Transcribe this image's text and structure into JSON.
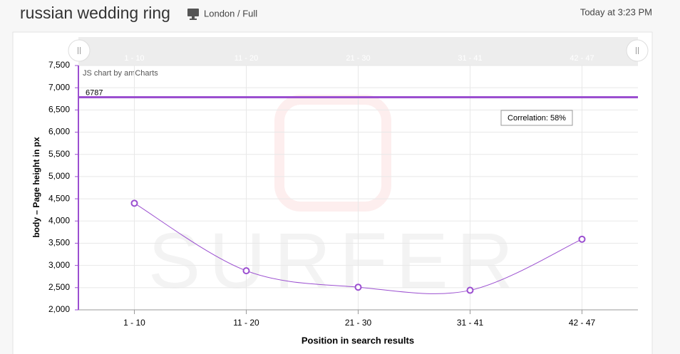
{
  "header": {
    "title": "russian wedding ring",
    "location": "London / Full",
    "timestamp": "Today at 3:23 PM"
  },
  "chart_data": {
    "type": "line",
    "credit": "JS chart by amCharts",
    "watermark": "SURFER",
    "x_label": "Position in search results",
    "y_label": "body – Page height in px",
    "annotation": "Correlation: 58%",
    "reference_line": {
      "value": 6787,
      "color": "#9b4fd0"
    },
    "categories": [
      "1 - 10",
      "11 - 20",
      "21 - 30",
      "31 - 41",
      "42 - 47"
    ],
    "series": [
      {
        "color": "#9b4fd0",
        "values": [
          4400,
          2880,
          2510,
          2440,
          3590
        ]
      }
    ],
    "ylim": [
      2000,
      7500
    ],
    "yticks": [
      {
        "value": 2000,
        "label": "2,000"
      },
      {
        "value": 2500,
        "label": "2,500"
      },
      {
        "value": 3000,
        "label": "3,000"
      },
      {
        "value": 3500,
        "label": "3,500"
      },
      {
        "value": 4000,
        "label": "4,000"
      },
      {
        "value": 4500,
        "label": "4,500"
      },
      {
        "value": 5000,
        "label": "5,000"
      },
      {
        "value": 5500,
        "label": "5,500"
      },
      {
        "value": 6000,
        "label": "6,000"
      },
      {
        "value": 6500,
        "label": "6,500"
      },
      {
        "value": 7000,
        "label": "7,000"
      },
      {
        "value": 7500,
        "label": "7,500"
      }
    ],
    "grid": true
  }
}
